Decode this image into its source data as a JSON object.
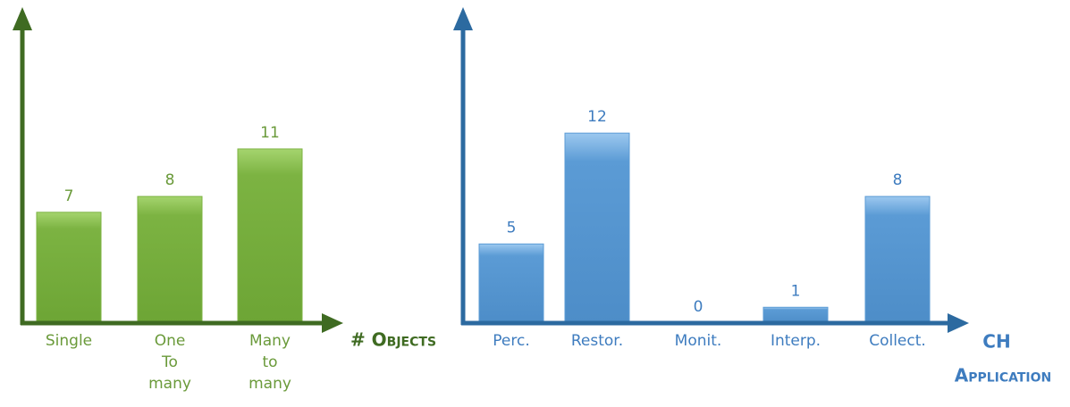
{
  "chart_data": [
    {
      "type": "bar",
      "x_label": [
        "# Objects"
      ],
      "categories": [
        [
          "Single"
        ],
        [
          "One",
          "To",
          "many"
        ],
        [
          "Many",
          "to",
          "many"
        ]
      ],
      "values": [
        7,
        8,
        11
      ],
      "color": "#7cb342",
      "axis_color": "#3f6b22",
      "text_color": "#6a9a3a",
      "ylim": [
        0,
        19
      ]
    },
    {
      "type": "bar",
      "x_label": [
        "CH",
        "Application"
      ],
      "categories": [
        [
          "Perc."
        ],
        [
          "Restor."
        ],
        [
          "Monit."
        ],
        [
          "Interp."
        ],
        [
          "Collect."
        ]
      ],
      "values": [
        5,
        12,
        0,
        1,
        8
      ],
      "color": "#5b9bd5",
      "axis_color": "#2c6aa0",
      "text_color": "#3e7cbf",
      "ylim": [
        0,
        19
      ]
    }
  ]
}
